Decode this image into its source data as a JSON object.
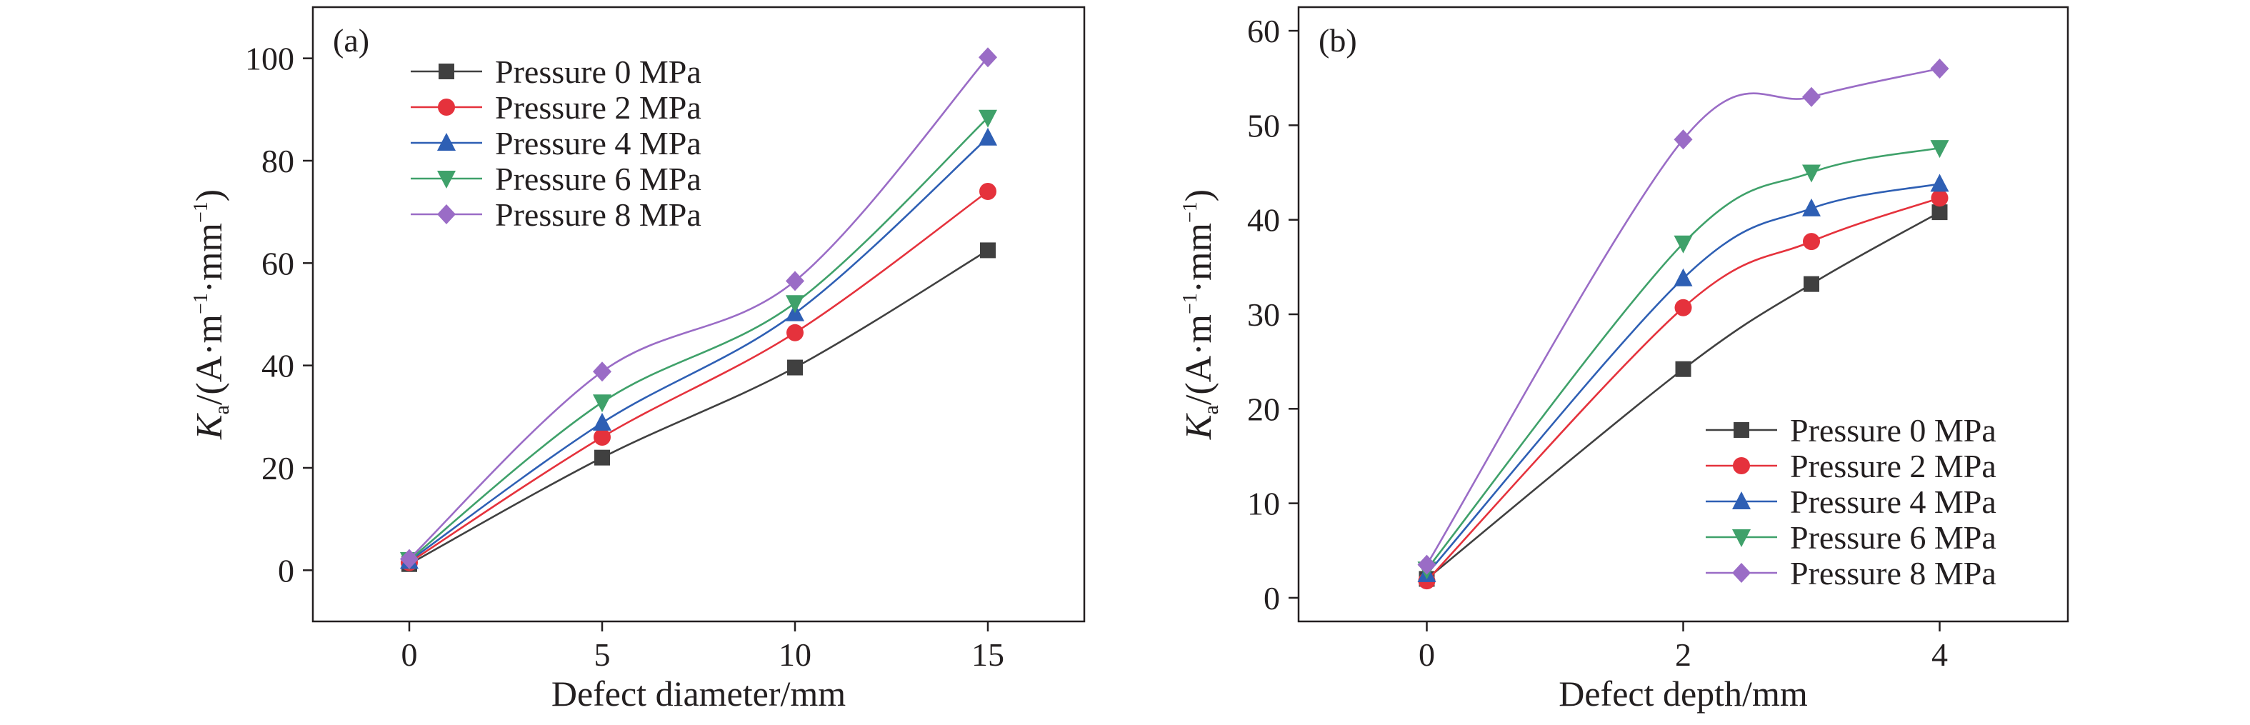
{
  "chart_data": [
    {
      "type": "line",
      "panel_label": "(a)",
      "xlabel": "Defect diameter/mm",
      "ylabel": {
        "main": "K",
        "sub": "a",
        "units_prefix": "/(A·m",
        "sup1": "−1",
        "mid": "·mm",
        "sup2": "−1",
        "close": ")"
      },
      "x": [
        0,
        5,
        10,
        15
      ],
      "xticks": [
        0,
        5,
        10,
        15
      ],
      "yticks": [
        0,
        20,
        40,
        60,
        80,
        100
      ],
      "xlim": [
        -2.5,
        17.5
      ],
      "ylim": [
        -10,
        110
      ],
      "grid": false,
      "legend_position": "top-left",
      "series": [
        {
          "name": "Pressure 0 MPa",
          "marker": "square",
          "color": "#404040",
          "values": [
            1.2,
            22.0,
            39.6,
            62.5
          ]
        },
        {
          "name": "Pressure 2 MPa",
          "marker": "circle",
          "color": "#e5323c",
          "values": [
            1.5,
            26.0,
            46.4,
            74.0
          ]
        },
        {
          "name": "Pressure 4 MPa",
          "marker": "triangle-up",
          "color": "#2e5fb4",
          "values": [
            1.8,
            28.8,
            50.2,
            84.5
          ]
        },
        {
          "name": "Pressure 6 MPa",
          "marker": "triangle-down",
          "color": "#3fa16a",
          "values": [
            2.0,
            32.8,
            52.2,
            88.4
          ]
        },
        {
          "name": "Pressure 8 MPa",
          "marker": "diamond",
          "color": "#9a6cc6",
          "values": [
            2.2,
            38.8,
            56.5,
            100.2
          ]
        }
      ]
    },
    {
      "type": "line",
      "panel_label": "(b)",
      "xlabel": "Defect depth/mm",
      "ylabel": {
        "main": "K",
        "sub": "a",
        "units_prefix": "/(A·m",
        "sup1": "−1",
        "mid": "·mm",
        "sup2": "−1",
        "close": ")"
      },
      "x": [
        0,
        2,
        3,
        4
      ],
      "xticks": [
        0,
        2,
        4
      ],
      "yticks": [
        0,
        10,
        20,
        30,
        40,
        50,
        60
      ],
      "xlim": [
        -1,
        5
      ],
      "ylim": [
        -2.5,
        62.5
      ],
      "grid": false,
      "legend_position": "bottom-right",
      "series": [
        {
          "name": "Pressure 0 MPa",
          "marker": "square",
          "color": "#404040",
          "values": [
            2.0,
            24.2,
            33.2,
            40.8
          ]
        },
        {
          "name": "Pressure 2 MPa",
          "marker": "circle",
          "color": "#e5323c",
          "values": [
            1.8,
            30.7,
            37.7,
            42.3
          ]
        },
        {
          "name": "Pressure 4 MPa",
          "marker": "triangle-up",
          "color": "#2e5fb4",
          "values": [
            2.5,
            33.8,
            41.2,
            43.8
          ]
        },
        {
          "name": "Pressure 6 MPa",
          "marker": "triangle-down",
          "color": "#3fa16a",
          "values": [
            3.0,
            37.5,
            45.0,
            47.6
          ]
        },
        {
          "name": "Pressure 8 MPa",
          "marker": "diamond",
          "color": "#9a6cc6",
          "values": [
            3.5,
            48.5,
            53.0,
            56.0
          ]
        }
      ]
    }
  ]
}
